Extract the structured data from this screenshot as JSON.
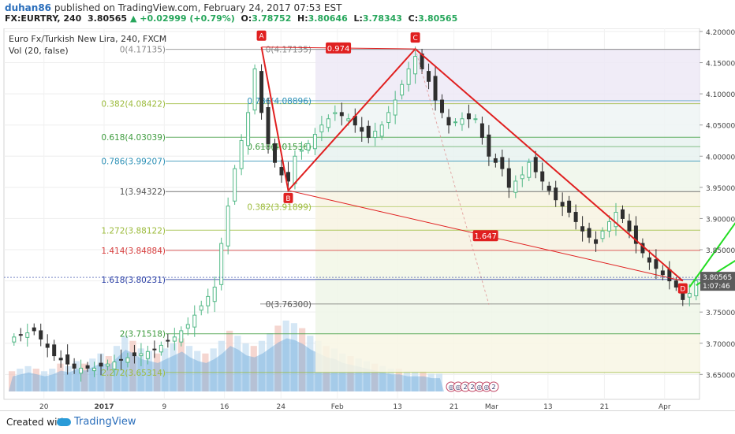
{
  "header": {
    "user": "duhan86",
    "published": " published on TradingView.com, February 24, 2017 07:53 EST",
    "symbol": "FX:EURTRY, 240",
    "price": "3.80565",
    "change": "+0.02999 (+0.79%)",
    "open_label": "O:",
    "open": "3.78752",
    "high_label": "H:",
    "high": "3.80646",
    "low_label": "L:",
    "low": "3.78343",
    "close_label": "C:",
    "close": "3.80565"
  },
  "footer": {
    "created": "Created with",
    "brand": "TradingView"
  },
  "chart_data": {
    "type": "candlestick",
    "title": "Euro Fx/Turkish New Lira, 240, FXCM",
    "indicator": "Vol (20, false)",
    "ylim": [
      3.61,
      4.205
    ],
    "y_ticks": [
      "4.20000",
      "4.15000",
      "4.10000",
      "4.05000",
      "4.00000",
      "3.95000",
      "3.90000",
      "3.85000",
      "3.80000",
      "3.75000",
      "3.70000",
      "3.65000"
    ],
    "x_ticks": [
      "20",
      "2017",
      "9",
      "16",
      "24",
      "Feb",
      "13",
      "21",
      "Mar",
      "13",
      "21",
      "Apr"
    ],
    "last_price": "3.80565",
    "countdown": "1:07:46",
    "close_path": [
      [
        0,
        3.71
      ],
      [
        3,
        3.72
      ],
      [
        6,
        3.68
      ],
      [
        9,
        3.66
      ],
      [
        12,
        3.66
      ],
      [
        15,
        3.67
      ],
      [
        18,
        3.68
      ],
      [
        21,
        3.69
      ],
      [
        24,
        3.71
      ],
      [
        26,
        3.73
      ],
      [
        28,
        3.76
      ],
      [
        30,
        3.79
      ],
      [
        31,
        3.86
      ],
      [
        33,
        3.98
      ],
      [
        35,
        4.07
      ],
      [
        36,
        4.14
      ],
      [
        37,
        4.07
      ],
      [
        38,
        4.02
      ],
      [
        39,
        3.99
      ],
      [
        40,
        3.97
      ],
      [
        41,
        3.96
      ],
      [
        42,
        4.0
      ],
      [
        44,
        4.02
      ],
      [
        46,
        4.05
      ],
      [
        48,
        4.07
      ],
      [
        50,
        4.06
      ],
      [
        52,
        4.04
      ],
      [
        53,
        4.03
      ],
      [
        55,
        4.05
      ],
      [
        57,
        4.09
      ],
      [
        59,
        4.14
      ],
      [
        60,
        4.16
      ],
      [
        62,
        4.12
      ],
      [
        63,
        4.09
      ],
      [
        65,
        4.05
      ],
      [
        67,
        4.06
      ],
      [
        69,
        4.06
      ],
      [
        70,
        4.03
      ],
      [
        71,
        4.0
      ],
      [
        73,
        3.98
      ],
      [
        74,
        3.95
      ],
      [
        76,
        3.97
      ],
      [
        77,
        3.99
      ],
      [
        79,
        3.96
      ],
      [
        81,
        3.93
      ],
      [
        83,
        3.91
      ],
      [
        85,
        3.88
      ],
      [
        87,
        3.86
      ],
      [
        88,
        3.88
      ],
      [
        90,
        3.91
      ],
      [
        91,
        3.9
      ],
      [
        93,
        3.86
      ],
      [
        95,
        3.83
      ],
      [
        97,
        3.81
      ],
      [
        99,
        3.79
      ],
      [
        100,
        3.77
      ],
      [
        101,
        3.78
      ],
      [
        102,
        3.8
      ]
    ],
    "volume_profile": [
      8,
      9,
      10,
      9,
      8,
      9,
      11,
      10,
      12,
      11,
      13,
      15,
      14,
      18,
      22,
      20,
      17,
      16,
      15,
      17,
      19,
      21,
      18,
      16,
      15,
      17,
      20,
      24,
      22,
      19,
      18,
      20,
      23,
      26,
      28,
      27,
      25,
      22,
      20,
      18,
      17,
      15,
      14,
      13,
      12,
      11,
      10,
      9,
      9,
      8,
      8,
      8,
      7,
      7
    ],
    "fib_left": [
      {
        "label": "0(4.17135)",
        "value": 4.17135,
        "color": "#888888"
      },
      {
        "label": "0.382(4.08422)",
        "value": 4.08422,
        "color": "#9cbb3c"
      },
      {
        "label": "0.618(4.03039)",
        "value": 4.03039,
        "color": "#3d9b3d"
      },
      {
        "label": "0.786(3.99207)",
        "value": 3.99207,
        "color": "#2a8fb5"
      },
      {
        "label": "1(3.94322)",
        "value": 3.94322,
        "color": "#555555"
      },
      {
        "label": "1.272(3.88122)",
        "value": 3.88122,
        "color": "#9cbb3c"
      },
      {
        "label": "1.414(3.84884)",
        "value": 3.84884,
        "color": "#d63a3a"
      },
      {
        "label": "1.618(3.80231)",
        "value": 3.80231,
        "color": "#2a3fa5"
      },
      {
        "label": "2(3.71518)",
        "value": 3.71518,
        "color": "#3d9b3d"
      },
      {
        "label": "2.272(3.65314)",
        "value": 3.65314,
        "color": "#9cbb3c"
      }
    ],
    "fib_right": [
      {
        "label": "0(4.17135)",
        "value": 4.17135,
        "color": "#888888"
      },
      {
        "label": "0.786(4.08896)",
        "value": 4.08896,
        "color": "#2a8fb5"
      },
      {
        "label": "0.618(4.01536)",
        "value": 4.01536,
        "color": "#3d9b3d"
      },
      {
        "label": "0.382(3.91899)",
        "value": 3.91899,
        "color": "#9cbb3c"
      },
      {
        "label": "0(3.76300)",
        "value": 3.763,
        "color": "#555555"
      }
    ],
    "pattern": {
      "points": [
        {
          "name": "A",
          "x": 37,
          "y": 4.175
        },
        {
          "name": "B",
          "x": 41,
          "y": 3.945
        },
        {
          "name": "C",
          "x": 60,
          "y": 4.172
        },
        {
          "name": "D",
          "x": 100,
          "y": 3.8
        }
      ],
      "ratio_ac": "0.974",
      "ratio_bd": "1.647",
      "color": "#e02020"
    },
    "projections": [
      {
        "from_x": 101,
        "from_y": 3.79,
        "to_x": 110,
        "to_y": 3.925
      },
      {
        "from_x": 102,
        "from_y": 3.793,
        "to_x": 135,
        "to_y": 4.015
      }
    ],
    "projection_color": "#22dd22",
    "event_icons": [
      "◎",
      "◎",
      "2",
      "2",
      "◎",
      "◎",
      "2"
    ]
  }
}
